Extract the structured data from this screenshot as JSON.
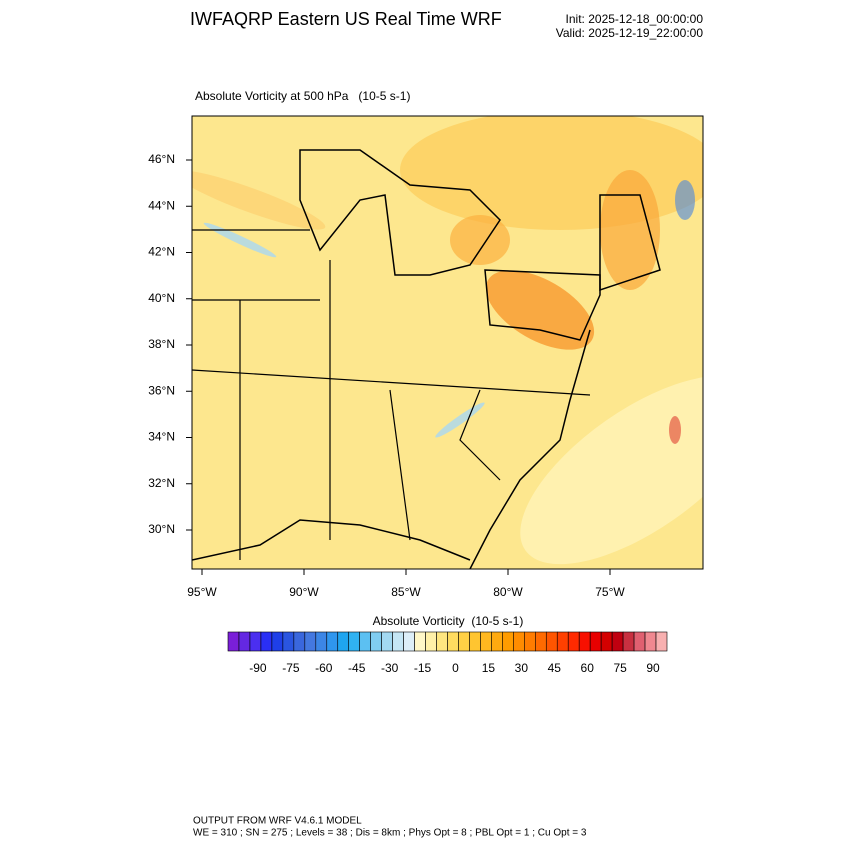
{
  "header": {
    "title": "IWFAQRP Eastern US Real Time WRF",
    "init": "Init: 2025-12-18_00:00:00",
    "valid": "Valid: 2025-12-19_22:00:00"
  },
  "map": {
    "subtitle": "Absolute Vorticity at 500 hPa   (10-5 s-1)",
    "lat_labels": [
      "46°N",
      "44°N",
      "42°N",
      "40°N",
      "38°N",
      "36°N",
      "34°N",
      "32°N",
      "30°N"
    ],
    "lon_labels": [
      "95°W",
      "90°W",
      "85°W",
      "80°W",
      "75°W"
    ]
  },
  "colorbar": {
    "title": "Absolute Vorticity  (10-5 s-1)",
    "labels": [
      -90,
      -75,
      -60,
      -45,
      -30,
      -15,
      0,
      15,
      30,
      45,
      60,
      75,
      90
    ],
    "colors": [
      "#7a1fd8",
      "#6428e2",
      "#4b2ff0",
      "#2a2ff5",
      "#1f3fe8",
      "#2a55e0",
      "#3a67dd",
      "#4478e0",
      "#3c86e6",
      "#2f96ee",
      "#1fa5f0",
      "#30b2f2",
      "#5cc0f2",
      "#80cdf2",
      "#a3d9f2",
      "#c5e6f5",
      "#ddeef8",
      "#fff7c8",
      "#fff0a8",
      "#ffe680",
      "#ffdc60",
      "#ffd045",
      "#ffc530",
      "#ffb820",
      "#ffaa10",
      "#ff9c00",
      "#ff8c00",
      "#ff7c00",
      "#ff6a00",
      "#ff5500",
      "#ff4000",
      "#ff2a00",
      "#f81000",
      "#e80000",
      "#d40000",
      "#c00010",
      "#c83040",
      "#e06070",
      "#f08890",
      "#f8b0b0"
    ]
  },
  "footer": {
    "line1": "OUTPUT FROM WRF V4.6.1 MODEL",
    "line2": "WE = 310 ; SN = 275 ; Levels = 38 ; Dis = 8km ; Phys Opt = 8 ; PBL Opt = 1 ; Cu Opt = 3"
  }
}
